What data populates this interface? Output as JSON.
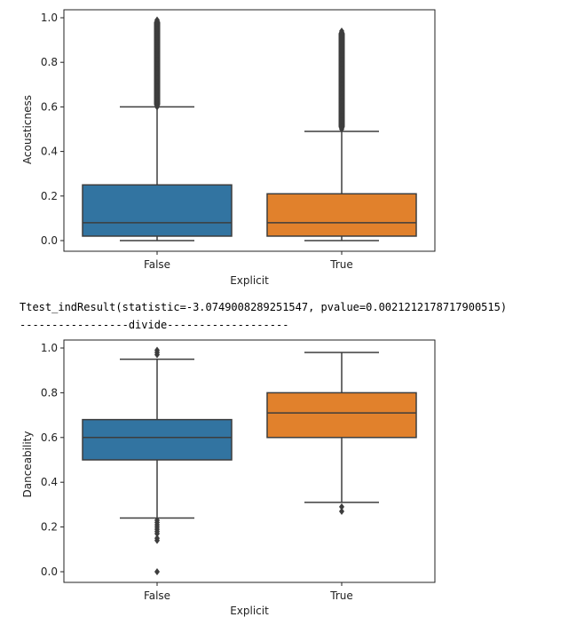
{
  "chart_data": [
    {
      "type": "box",
      "xlabel": "Explicit",
      "ylabel": "Acousticness",
      "ylim": [
        0,
        1.0
      ],
      "yticks": [
        "0.0",
        "0.2",
        "0.4",
        "0.6",
        "0.8",
        "1.0"
      ],
      "categories": [
        "False",
        "True"
      ],
      "box_colors": [
        "#3274a1",
        "#e1812c"
      ],
      "boxes": [
        {
          "category": "False",
          "whisker_low": 0.0,
          "q1": 0.02,
          "median": 0.08,
          "q3": 0.25,
          "whisker_high": 0.6,
          "outlier_range": [
            0.6,
            0.99
          ],
          "outliers": [
            0.99,
            0.97,
            0.95,
            0.93,
            0.91,
            0.89,
            0.87,
            0.85,
            0.83,
            0.81,
            0.79,
            0.77,
            0.75,
            0.73,
            0.71,
            0.69,
            0.67,
            0.65,
            0.63,
            0.61,
            0.6
          ]
        },
        {
          "category": "True",
          "whisker_low": 0.0,
          "q1": 0.02,
          "median": 0.08,
          "q3": 0.21,
          "whisker_high": 0.49,
          "outlier_range": [
            0.5,
            0.94
          ],
          "outliers": [
            0.94,
            0.92,
            0.87,
            0.85,
            0.83,
            0.81,
            0.79,
            0.77,
            0.72,
            0.7,
            0.68,
            0.66,
            0.64,
            0.62,
            0.6,
            0.58,
            0.56,
            0.54,
            0.51,
            0.5
          ]
        }
      ]
    },
    {
      "type": "box",
      "xlabel": "Explicit",
      "ylabel": "Danceability",
      "ylim": [
        0,
        1.0
      ],
      "yticks": [
        "0.0",
        "0.2",
        "0.4",
        "0.6",
        "0.8",
        "1.0"
      ],
      "categories": [
        "False",
        "True"
      ],
      "box_colors": [
        "#3274a1",
        "#e1812c"
      ],
      "boxes": [
        {
          "category": "False",
          "whisker_low": 0.24,
          "q1": 0.5,
          "median": 0.6,
          "q3": 0.68,
          "whisker_high": 0.95,
          "outliers": [
            0.99,
            0.98,
            0.97,
            0.23,
            0.22,
            0.21,
            0.2,
            0.19,
            0.18,
            0.17,
            0.15,
            0.14,
            0.0
          ]
        },
        {
          "category": "True",
          "whisker_low": 0.31,
          "q1": 0.6,
          "median": 0.71,
          "q3": 0.8,
          "whisker_high": 0.98,
          "outliers": [
            0.29,
            0.27
          ]
        }
      ]
    }
  ],
  "console": {
    "ttest": "Ttest_indResult(statistic=-3.0749008289251547, pvalue=0.0021212178717900515)",
    "divide": "-----------------divide-------------------"
  }
}
